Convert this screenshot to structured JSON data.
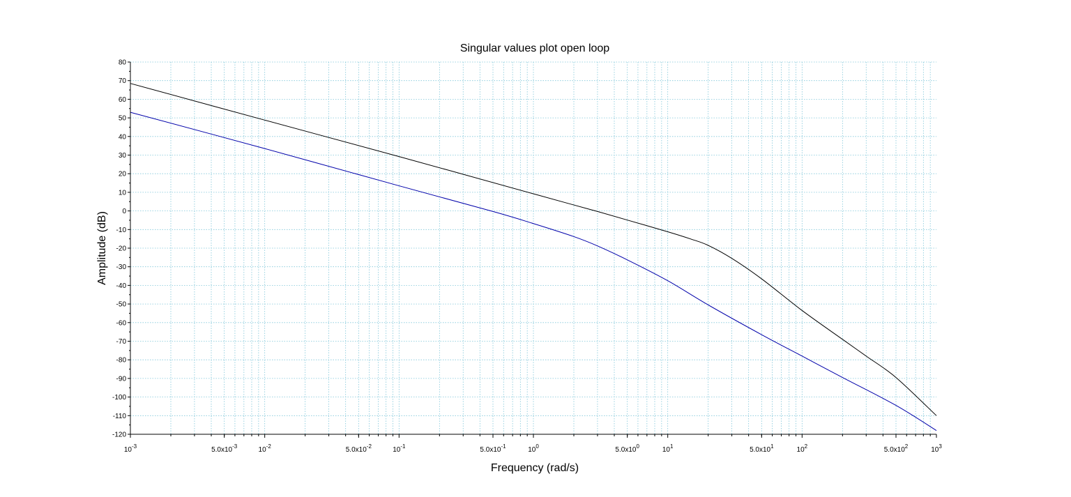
{
  "chart_data": {
    "type": "line",
    "title": "Singular values plot open loop",
    "xlabel": "Frequency (rad/s)",
    "ylabel": "Amplitude (dB)",
    "x_scale": "log",
    "xlim": [
      0.001,
      1000
    ],
    "ylim": [
      -120,
      80
    ],
    "grid": true,
    "x_tick_labels": [
      {
        "value": 0.001,
        "base": "10",
        "exp": "-3"
      },
      {
        "value": 0.005,
        "base": "5.0x10",
        "exp": "-3"
      },
      {
        "value": 0.01,
        "base": "10",
        "exp": "-2"
      },
      {
        "value": 0.05,
        "base": "5.0x10",
        "exp": "-2"
      },
      {
        "value": 0.1,
        "base": "10",
        "exp": "-1"
      },
      {
        "value": 0.5,
        "base": "5.0x10",
        "exp": "-1"
      },
      {
        "value": 1,
        "base": "10",
        "exp": "0"
      },
      {
        "value": 5,
        "base": "5.0x10",
        "exp": "0"
      },
      {
        "value": 10,
        "base": "10",
        "exp": "1"
      },
      {
        "value": 50,
        "base": "5.0x10",
        "exp": "1"
      },
      {
        "value": 100,
        "base": "10",
        "exp": "2"
      },
      {
        "value": 500,
        "base": "5.0x10",
        "exp": "2"
      },
      {
        "value": 1000,
        "base": "10",
        "exp": "3"
      }
    ],
    "y_ticks": [
      80,
      70,
      60,
      50,
      40,
      30,
      20,
      10,
      0,
      -10,
      -20,
      -30,
      -40,
      -50,
      -60,
      -70,
      -80,
      -90,
      -100,
      -110,
      -120
    ],
    "series": [
      {
        "color": "#000000",
        "x": [
          0.001,
          0.01,
          0.1,
          1,
          2,
          3,
          5,
          10,
          15,
          20,
          30,
          50,
          100,
          200,
          300,
          500,
          1000
        ],
        "y": [
          68.5,
          48.8,
          29.2,
          9.2,
          3.2,
          -0.3,
          -4.9,
          -11.2,
          -15.2,
          -18.5,
          -25.5,
          -36.5,
          -53.5,
          -69.0,
          -78.0,
          -89.5,
          -110.0
        ]
      },
      {
        "color": "#0000aa",
        "x": [
          0.001,
          0.01,
          0.1,
          0.5,
          1,
          2,
          3,
          5,
          10,
          20,
          50,
          100,
          200,
          500,
          1000
        ],
        "y": [
          53.0,
          33.5,
          13.5,
          -0.3,
          -6.8,
          -13.8,
          -18.8,
          -26.3,
          -37.5,
          -50.5,
          -66.5,
          -78.0,
          -89.5,
          -104.5,
          -118.0
        ]
      }
    ]
  }
}
